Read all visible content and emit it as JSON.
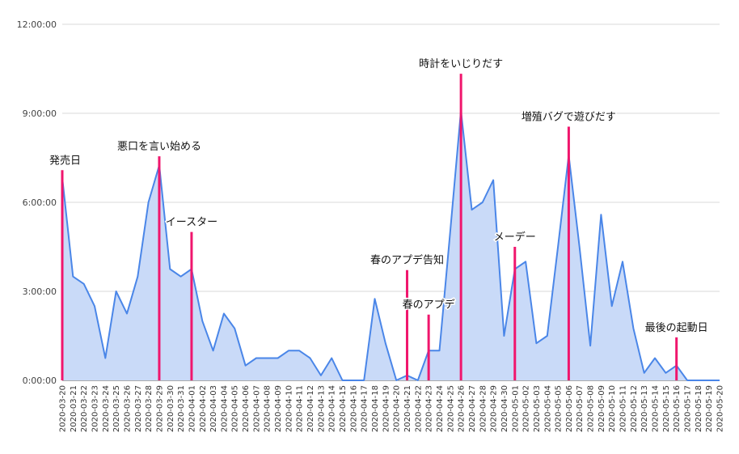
{
  "chart_data": {
    "type": "area",
    "title": "",
    "xlabel": "",
    "ylabel": "",
    "ylim_minutes": [
      0,
      720
    ],
    "y_ticks": [
      {
        "minutes": 0,
        "label": "0:00:00"
      },
      {
        "minutes": 180,
        "label": "3:00:00"
      },
      {
        "minutes": 360,
        "label": "6:00:00"
      },
      {
        "minutes": 540,
        "label": "9:00:00"
      },
      {
        "minutes": 720,
        "label": "12:00:00"
      }
    ],
    "grid": true,
    "legend": "none",
    "colors": {
      "line": "#4a86e8",
      "fill": "#c9daf8",
      "marker": "#f0166d",
      "grid": "#d9d9d9"
    },
    "x": [
      "2020-03-20",
      "2020-03-21",
      "2020-03-22",
      "2020-03-23",
      "2020-03-24",
      "2020-03-25",
      "2020-03-26",
      "2020-03-27",
      "2020-03-28",
      "2020-03-29",
      "2020-03-30",
      "2020-03-31",
      "2020-04-01",
      "2020-04-02",
      "2020-04-03",
      "2020-04-04",
      "2020-04-05",
      "2020-04-06",
      "2020-04-07",
      "2020-04-08",
      "2020-04-09",
      "2020-04-10",
      "2020-04-11",
      "2020-04-12",
      "2020-04-13",
      "2020-04-14",
      "2020-04-15",
      "2020-04-16",
      "2020-04-17",
      "2020-04-18",
      "2020-04-19",
      "2020-04-20",
      "2020-04-21",
      "2020-04-22",
      "2020-04-23",
      "2020-04-24",
      "2020-04-25",
      "2020-04-26",
      "2020-04-27",
      "2020-04-28",
      "2020-04-29",
      "2020-04-30",
      "2020-05-01",
      "2020-05-02",
      "2020-05-03",
      "2020-05-04",
      "2020-05-05",
      "2020-05-06",
      "2020-05-07",
      "2020-05-08",
      "2020-05-09",
      "2020-05-10",
      "2020-05-11",
      "2020-05-12",
      "2020-05-13",
      "2020-05-14",
      "2020-05-15",
      "2020-05-16",
      "2020-05-17",
      "2020-05-18",
      "2020-05-19",
      "2020-05-20"
    ],
    "values_minutes": [
      410,
      210,
      195,
      150,
      45,
      180,
      135,
      210,
      360,
      435,
      225,
      210,
      225,
      120,
      60,
      135,
      105,
      30,
      45,
      45,
      45,
      60,
      60,
      45,
      10,
      45,
      0,
      0,
      0,
      165,
      75,
      0,
      10,
      0,
      60,
      60,
      300,
      545,
      345,
      360,
      405,
      90,
      225,
      240,
      75,
      90,
      270,
      455,
      270,
      70,
      335,
      150,
      240,
      105,
      15,
      45,
      15,
      30,
      0,
      0,
      0,
      0
    ],
    "annotations": [
      {
        "date": "2020-03-20",
        "text": "発売日",
        "height_minutes": 425
      },
      {
        "date": "2020-03-29",
        "text": "悪口を言い始める",
        "height_minutes": 453
      },
      {
        "date": "2020-04-01",
        "text": "イースター",
        "height_minutes": 300
      },
      {
        "date": "2020-04-21",
        "text": "春のアプデ告知",
        "height_minutes": 223
      },
      {
        "date": "2020-04-23",
        "text": "春のアプデ",
        "height_minutes": 133
      },
      {
        "date": "2020-04-26",
        "text": "時計をいじりだす",
        "height_minutes": 620
      },
      {
        "date": "2020-05-01",
        "text": "メーデー",
        "height_minutes": 270
      },
      {
        "date": "2020-05-06",
        "text": "増殖バグで遊びだす",
        "height_minutes": 513
      },
      {
        "date": "2020-05-16",
        "text": "最後の起動日",
        "height_minutes": 87
      }
    ]
  }
}
